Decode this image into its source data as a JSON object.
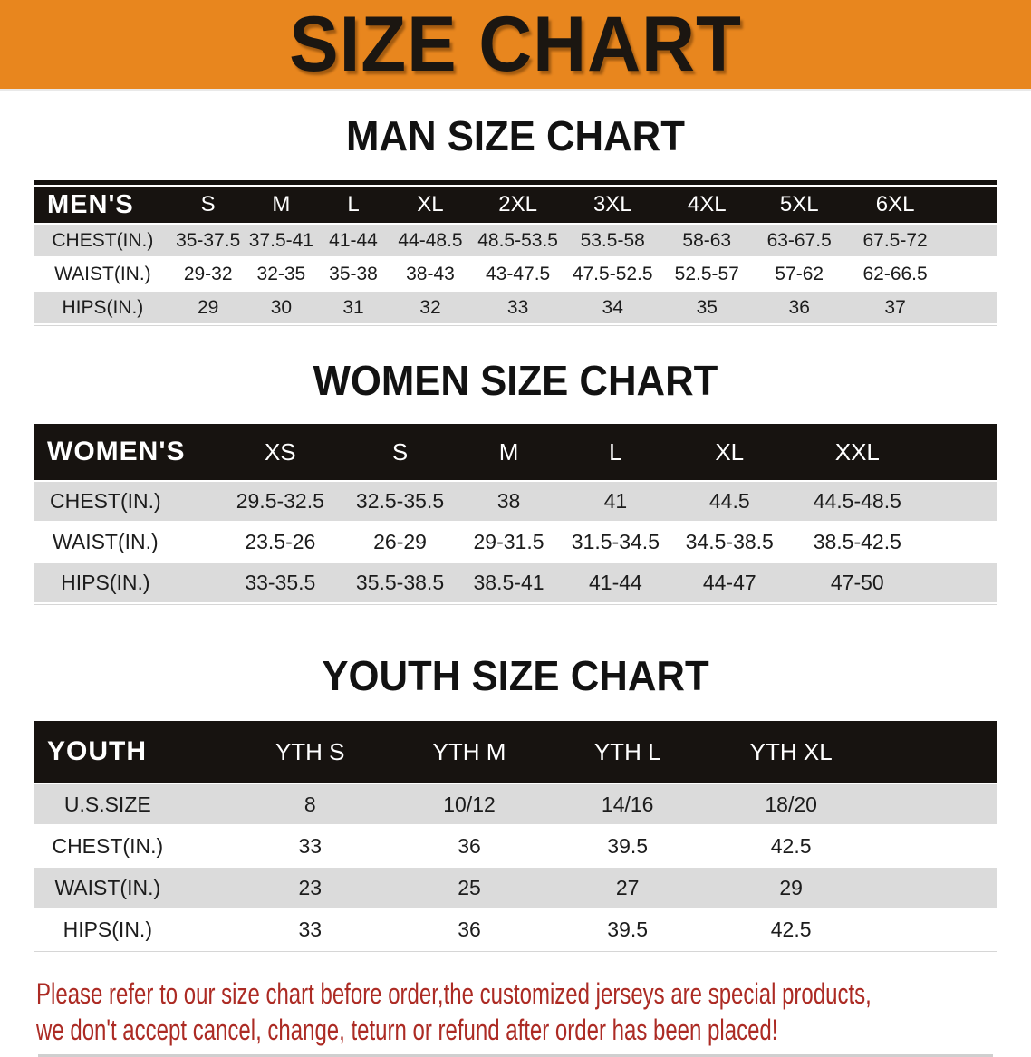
{
  "banner": {
    "title": "SIZE CHART",
    "bg_color": "#E8861E"
  },
  "sections": [
    {
      "heading": "MAN SIZE CHART"
    },
    {
      "heading": "WOMEN SIZE CHART"
    },
    {
      "heading": "YOUTH SIZE CHART"
    }
  ],
  "chart_data": [
    {
      "type": "table",
      "title": "MAN SIZE CHART",
      "columns": [
        "MEN'S",
        "S",
        "M",
        "L",
        "XL",
        "2XL",
        "3XL",
        "4XL",
        "5XL",
        "6XL"
      ],
      "rows": [
        [
          "CHEST(IN.)",
          "35-37.5",
          "37.5-41",
          "41-44",
          "44-48.5",
          "48.5-53.5",
          "53.5-58",
          "58-63",
          "63-67.5",
          "67.5-72"
        ],
        [
          "WAIST(IN.)",
          "29-32",
          "32-35",
          "35-38",
          "38-43",
          "43-47.5",
          "47.5-52.5",
          "52.5-57",
          "57-62",
          "62-66.5"
        ],
        [
          "HIPS(IN.)",
          "29",
          "30",
          "31",
          "32",
          "33",
          "34",
          "35",
          "36",
          "37"
        ]
      ]
    },
    {
      "type": "table",
      "title": "WOMEN SIZE CHART",
      "columns": [
        "WOMEN'S",
        "XS",
        "S",
        "M",
        "L",
        "XL",
        "XXL"
      ],
      "rows": [
        [
          "CHEST(IN.)",
          "29.5-32.5",
          "32.5-35.5",
          "38",
          "41",
          "44.5",
          "44.5-48.5"
        ],
        [
          "WAIST(IN.)",
          "23.5-26",
          "26-29",
          "29-31.5",
          "31.5-34.5",
          "34.5-38.5",
          "38.5-42.5"
        ],
        [
          "HIPS(IN.)",
          "33-35.5",
          "35.5-38.5",
          "38.5-41",
          "41-44",
          "44-47",
          "47-50"
        ]
      ]
    },
    {
      "type": "table",
      "title": "YOUTH SIZE CHART",
      "columns": [
        "YOUTH",
        "YTH S",
        "YTH M",
        "YTH L",
        "YTH XL"
      ],
      "rows": [
        [
          "U.S.SIZE",
          "8",
          "10/12",
          "14/16",
          "18/20"
        ],
        [
          "CHEST(IN.)",
          "33",
          "36",
          "39.5",
          "42.5"
        ],
        [
          "WAIST(IN.)",
          "23",
          "25",
          "27",
          "29"
        ],
        [
          "HIPS(IN.)",
          "33",
          "36",
          "39.5",
          "42.5"
        ]
      ]
    }
  ],
  "footer": {
    "line1": "Please refer to our size chart before order,the customized jerseys are special products,",
    "line2": "we don't accept cancel, change, teturn or refund after order has been placed!",
    "text_color": "#AC2B24"
  }
}
